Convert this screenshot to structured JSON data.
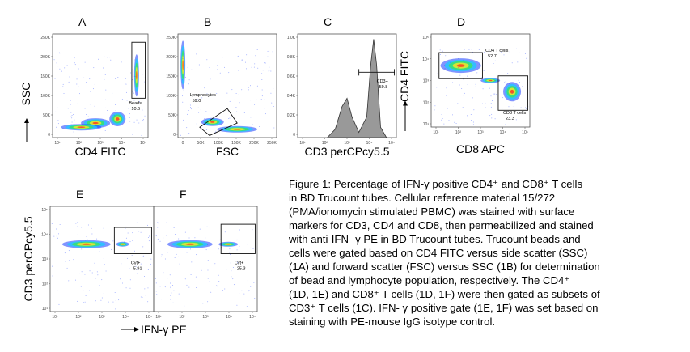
{
  "panels": [
    {
      "letter": "A",
      "x_label": "CD4 FITC",
      "y_label": "SSC",
      "xticks": [
        "10¹",
        "10²",
        "10³",
        "10⁴",
        "10⁵"
      ],
      "yticks": [
        "0",
        "50K",
        "100K",
        "150K",
        "200K",
        "250K"
      ],
      "gates": [
        {
          "label": "Beads",
          "value": "10.6"
        }
      ]
    },
    {
      "letter": "B",
      "x_label": "FSC",
      "xticks": [
        "0",
        "50K",
        "100K",
        "150K",
        "200K",
        "250K"
      ],
      "yticks": [
        "0",
        "50K",
        "100K",
        "150K",
        "200K",
        "250K"
      ],
      "gates": [
        {
          "label": "Lymphocytes",
          "value": "59.0"
        }
      ]
    },
    {
      "letter": "C",
      "x_label": "CD3 perCPcy5.5",
      "xticks": [
        "10¹",
        "10²",
        "10³",
        "10⁴",
        "10⁵"
      ],
      "yticks": [
        "0",
        "0.2K",
        "0.4K",
        "0.6K",
        "0.8K",
        "1.0K"
      ],
      "gates": [
        {
          "label": "CD3+",
          "value": "59.8"
        }
      ]
    },
    {
      "letter": "D",
      "x_label": "CD8 APC",
      "y_label": "CD4 FITC",
      "xticks": [
        "10¹",
        "10²",
        "10³",
        "10⁴",
        "10⁵"
      ],
      "yticks": [
        "10¹",
        "10²",
        "10³",
        "10⁴",
        "10⁵"
      ],
      "gates": [
        {
          "label": "CD4 T cells",
          "value": "52.7"
        },
        {
          "label": "CD8 T cells",
          "value": "23.3"
        }
      ]
    }
  ],
  "bottom_row": {
    "y_label": "CD3 perCPcy5.5",
    "x_label": "IFN-γ PE",
    "panels": [
      {
        "letter": "E",
        "xticks": [
          "10¹",
          "10²",
          "10³",
          "10⁴",
          "10⁵"
        ],
        "yticks": [
          "10¹",
          "10²",
          "10³",
          "10⁴",
          "10⁵"
        ],
        "gates": [
          {
            "label": "Cyt+",
            "value": "5.91"
          }
        ]
      },
      {
        "letter": "F",
        "xticks": [
          "10¹",
          "10²",
          "10³",
          "10⁴",
          "10⁵"
        ],
        "gates": [
          {
            "label": "Cyt+",
            "value": "25.3"
          }
        ]
      }
    ]
  },
  "caption": [
    "Figure 1: Percentage of IFN-γ positive CD4⁺ and CD8⁺ T cells",
    "in BD Trucount tubes. Cellular reference material 15/272",
    "(PMA/ionomycin stimulated PBMC) was stained with surface",
    "markers for CD3, CD4 and CD8, then permeabilized and stained",
    "with anti-IFN- γ PE in BD Trucount tubes. Trucount beads and",
    "cells were gated based on CD4 FITC versus side scatter (SSC)",
    "(1A) and forward scatter (FSC) versus SSC (1B) for determination",
    "of bead and lymphocyte population, respectively. The CD4⁺",
    "(1D, 1E) and CD8⁺ T cells (1D, 1F) were then gated as subsets of",
    "CD3⁺ T cells (1C). IFN- γ positive gate (1E, 1F) was set based on",
    "staining with PE-mouse IgG isotype control."
  ]
}
